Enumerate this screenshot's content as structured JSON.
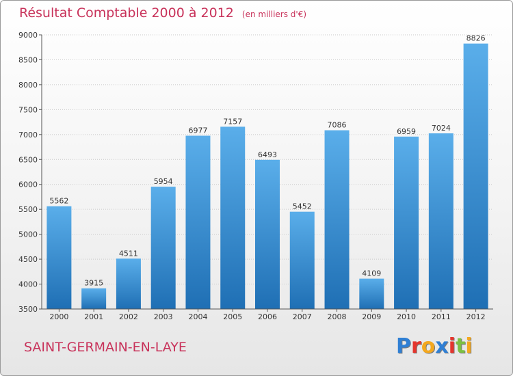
{
  "title": "Résultat Comptable 2000 à 2012",
  "subtitle": "(en milliers d'€)",
  "commune": "SAINT-GERMAIN-EN-LAYE",
  "logo": {
    "letters": [
      "P",
      "r",
      "o",
      "x",
      "i",
      "t",
      "i"
    ],
    "colors": [
      "#2f7fd4",
      "#e5352d",
      "#f4a81f",
      "#2f7fd4",
      "#e5352d",
      "#7cc043",
      "#f4a81f"
    ]
  },
  "colors": {
    "bar_top": "#5aaeea",
    "bar_bottom": "#1f6fb4",
    "accent": "#c8325a"
  },
  "chart_data": {
    "type": "bar",
    "title": "Résultat Comptable 2000 à 2012",
    "xlabel": "",
    "ylabel": "en milliers d'€",
    "categories": [
      "2000",
      "2001",
      "2002",
      "2003",
      "2004",
      "2005",
      "2006",
      "2007",
      "2008",
      "2009",
      "2010",
      "2011",
      "2012"
    ],
    "values": [
      5562,
      3915,
      4511,
      5954,
      6977,
      7157,
      6493,
      5452,
      7086,
      4109,
      6959,
      7024,
      8826
    ],
    "ylim": [
      3500,
      9000
    ],
    "yticks": [
      3500,
      4000,
      4500,
      5000,
      5500,
      6000,
      6500,
      7000,
      7500,
      8000,
      8500,
      9000
    ],
    "grid": true
  }
}
